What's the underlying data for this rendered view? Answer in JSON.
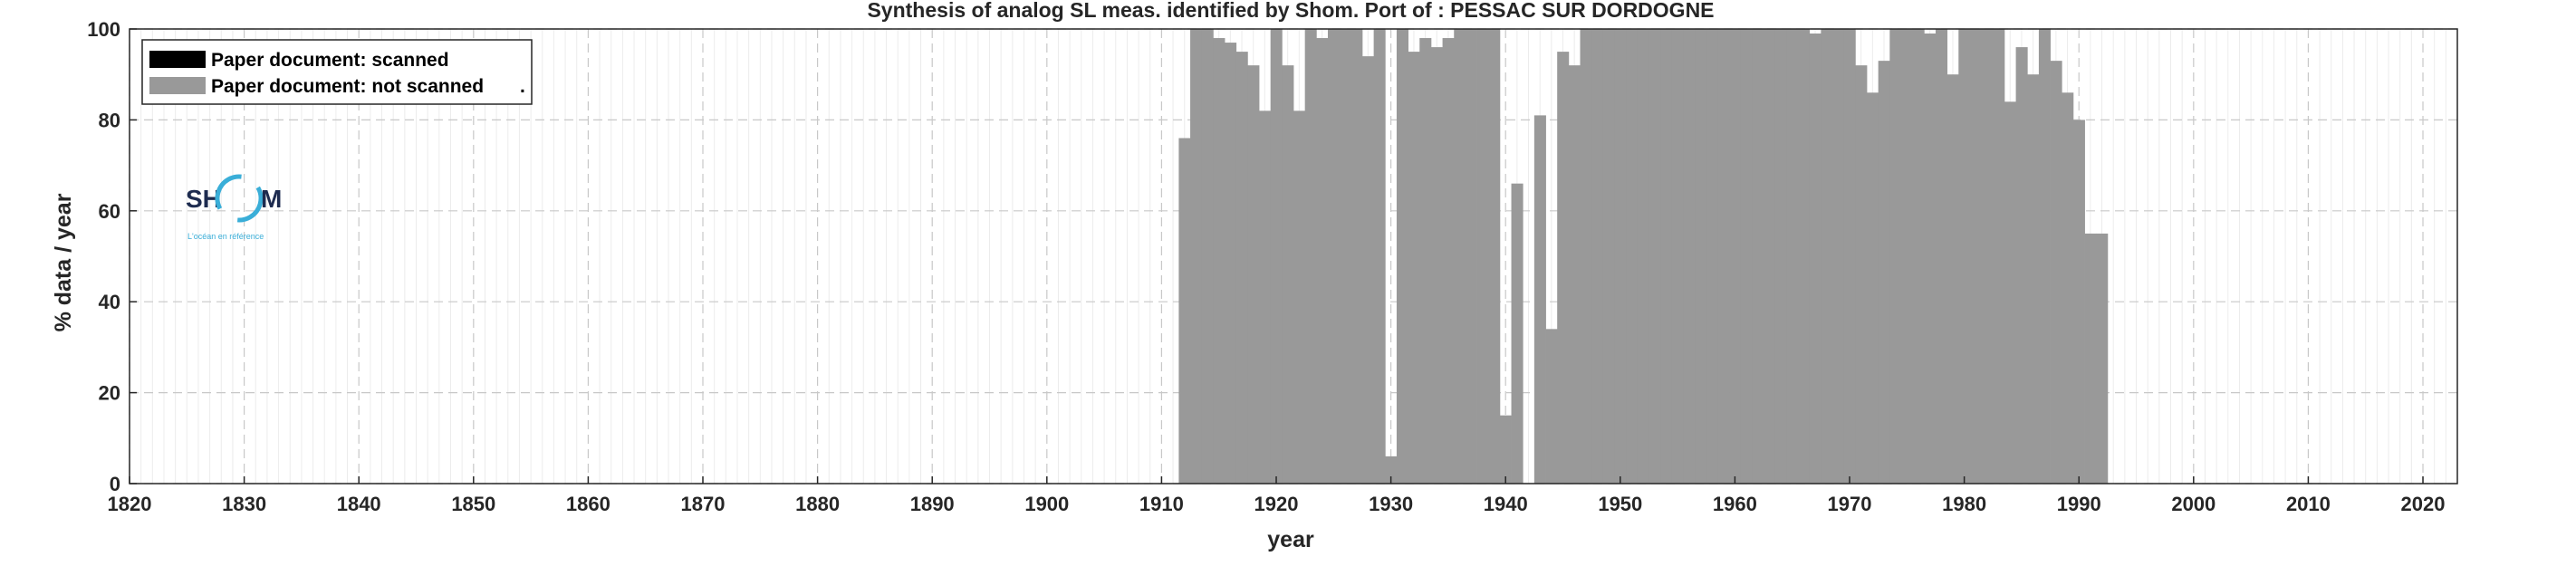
{
  "chart_data": {
    "type": "bar",
    "title": "Synthesis of analog SL meas. identified by Shom. Port of : PESSAC SUR DORDOGNE",
    "xlabel": "year",
    "ylabel": "% data / year",
    "xlim": [
      1820,
      2023
    ],
    "ylim": [
      0,
      100
    ],
    "xticks": [
      1820,
      1830,
      1840,
      1850,
      1860,
      1870,
      1880,
      1890,
      1900,
      1910,
      1920,
      1930,
      1940,
      1950,
      1960,
      1970,
      1980,
      1990,
      2000,
      2010,
      2020
    ],
    "yticks": [
      0,
      20,
      40,
      60,
      80,
      100
    ],
    "grid": true,
    "legend_position": "top-left",
    "series": [
      {
        "name": "Paper document: scanned",
        "color": "#000000",
        "x": [],
        "values": []
      },
      {
        "name": "Paper document: not scanned",
        "color": "#999999",
        "x": [
          1912,
          1913,
          1914,
          1915,
          1916,
          1917,
          1918,
          1919,
          1920,
          1921,
          1922,
          1923,
          1924,
          1925,
          1926,
          1927,
          1928,
          1929,
          1930,
          1931,
          1932,
          1933,
          1934,
          1935,
          1936,
          1937,
          1938,
          1939,
          1940,
          1941,
          1943,
          1944,
          1945,
          1946,
          1947,
          1948,
          1949,
          1950,
          1951,
          1952,
          1953,
          1954,
          1955,
          1956,
          1957,
          1958,
          1959,
          1960,
          1961,
          1962,
          1963,
          1964,
          1965,
          1966,
          1967,
          1968,
          1969,
          1970,
          1971,
          1972,
          1973,
          1974,
          1975,
          1976,
          1977,
          1978,
          1979,
          1980,
          1981,
          1982,
          1983,
          1984,
          1985,
          1986,
          1987,
          1988,
          1989,
          1990,
          1991,
          1992
        ],
        "values": [
          76,
          100,
          100,
          98,
          97,
          95,
          92,
          82,
          100,
          92,
          82,
          100,
          98,
          100,
          100,
          100,
          94,
          100,
          6,
          100,
          95,
          98,
          96,
          98,
          100,
          100,
          100,
          100,
          15,
          66,
          81,
          34,
          95,
          92,
          100,
          100,
          100,
          100,
          100,
          100,
          100,
          100,
          100,
          100,
          100,
          100,
          100,
          100,
          100,
          100,
          100,
          100,
          100,
          100,
          99,
          100,
          100,
          100,
          92,
          86,
          93,
          100,
          100,
          100,
          99,
          100,
          90,
          100,
          100,
          100,
          100,
          84,
          96,
          90,
          100,
          93,
          86,
          80,
          55,
          55
        ]
      }
    ],
    "legend_suffix": "."
  },
  "logo": {
    "left_text": "SH",
    "right_text": "M",
    "tagline": "L'océan en référence"
  }
}
